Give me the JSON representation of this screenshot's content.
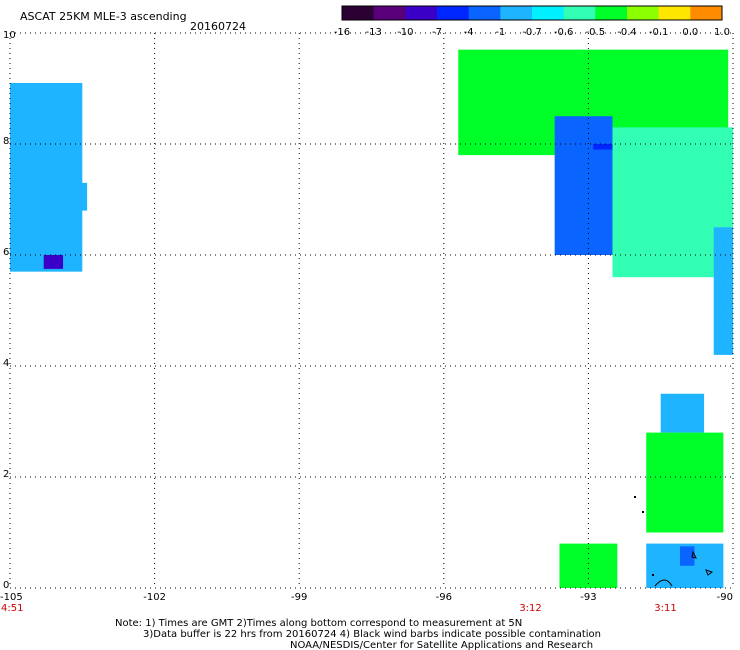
{
  "header": {
    "title": "ASCAT 25KM MLE-3 ascending",
    "date": "20160724"
  },
  "colorbar": {
    "labels": [
      "-16",
      "-13",
      "-10",
      "-7",
      "-4",
      "-1",
      "-0.7",
      "-0.6",
      "-0.5",
      "-0.4",
      "-0.1",
      "0.0",
      "1.0"
    ],
    "colors": [
      "#2b0033",
      "#5a007a",
      "#3a00c8",
      "#0026ff",
      "#0a64ff",
      "#1eb4ff",
      "#00f0ff",
      "#32ffb4",
      "#00ff28",
      "#8cff00",
      "#ffe600",
      "#ff8c00",
      "#ff1400"
    ]
  },
  "chart_data": {
    "type": "heatmap",
    "title": "ASCAT 25KM MLE-3 ascending",
    "date": "20160724",
    "xlabel": "",
    "ylabel": "",
    "xlim": [
      -105,
      -90
    ],
    "ylim": [
      0,
      10
    ],
    "x_ticks": [
      "-105",
      "-102",
      "-99",
      "-96",
      "-93",
      "-90"
    ],
    "y_ticks": [
      "0",
      "2",
      "4",
      "6",
      "8",
      "10"
    ],
    "grid": true,
    "time_labels": [
      {
        "text": "4:51",
        "lon": -105
      },
      {
        "text": "3:12",
        "lon": -94.2
      },
      {
        "text": "3:11",
        "lon": -91.4
      }
    ],
    "color_scale": {
      "boundaries": [
        -16,
        -13,
        -10,
        -7,
        -4,
        -1,
        -0.7,
        -0.6,
        -0.5,
        -0.4,
        -0.1,
        0.0,
        1.0
      ]
    },
    "regions": [
      {
        "lon": [
          -105,
          -103.5
        ],
        "lat": [
          5.7,
          9.1
        ],
        "value": -1,
        "note": "west swath edge, mostly blue/cyan"
      },
      {
        "lon": [
          -104.3,
          -103.9
        ],
        "lat": [
          5.75,
          6.0
        ],
        "value": -10
      },
      {
        "lon": [
          -103.7,
          -103.4
        ],
        "lat": [
          6.8,
          7.3
        ],
        "value": -1.0
      },
      {
        "lon": [
          -95.7,
          -90.1
        ],
        "lat": [
          7.8,
          9.7
        ],
        "value": -0.5
      },
      {
        "lon": [
          -93.7,
          -92.5
        ],
        "lat": [
          6.0,
          8.5
        ],
        "value": -4
      },
      {
        "lon": [
          -92.9,
          -92.5
        ],
        "lat": [
          7.9,
          8.0
        ],
        "value": -7
      },
      {
        "lon": [
          -92.5,
          -90.0
        ],
        "lat": [
          5.6,
          8.3
        ],
        "value": -0.6
      },
      {
        "lon": [
          -90.4,
          -90.0
        ],
        "lat": [
          4.2,
          6.5
        ],
        "value": -1
      },
      {
        "lon": [
          -91.5,
          -90.6
        ],
        "lat": [
          2.8,
          3.5
        ],
        "value": -1
      },
      {
        "lon": [
          -91.8,
          -90.2
        ],
        "lat": [
          1.0,
          2.8
        ],
        "value": -0.5
      },
      {
        "lon": [
          -93.6,
          -92.4
        ],
        "lat": [
          0.0,
          0.8
        ],
        "value": -0.5
      },
      {
        "lon": [
          -91.8,
          -90.2
        ],
        "lat": [
          0.0,
          0.8
        ],
        "value": -1
      },
      {
        "lon": [
          -91.1,
          -90.8
        ],
        "lat": [
          0.4,
          0.75
        ],
        "value": -4
      }
    ]
  },
  "footer": {
    "line1": "Note: 1) Times are GMT 2)Times along bottom correspond to measurement at 5N",
    "line2": "3)Data buffer is 22 hrs from 20160724 4) Black wind barbs indicate possible contamination",
    "line3": "NOAA/NESDIS/Center for Satellite Applications and Research"
  }
}
